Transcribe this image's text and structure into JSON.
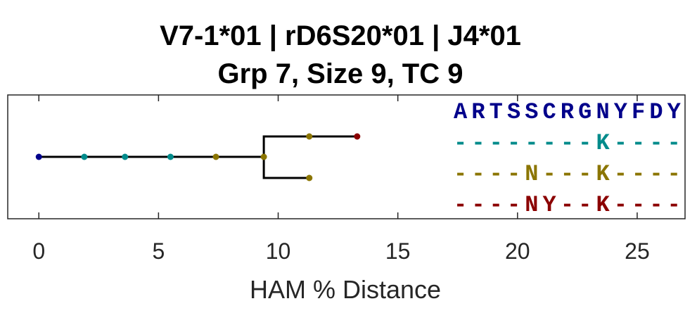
{
  "chart_data": {
    "type": "tree",
    "title": "V7-1*01 | rD6S20*01 | J4*01",
    "subtitle": "Grp 7, Size 9, TC 9",
    "xlabel": "HAM % Distance",
    "xlim": [
      -1.3,
      27
    ],
    "xticks": [
      0,
      5,
      10,
      15,
      20,
      25
    ],
    "xtick_labels": [
      "0",
      "5",
      "10",
      "15",
      "20",
      "25"
    ],
    "grid": false,
    "colors": {
      "germline": "#00008b",
      "teal": "#008b8b",
      "olive": "#8b7500",
      "red": "#8b0000",
      "edge": "#000000"
    },
    "nodes": [
      {
        "id": "root",
        "x": 0.0,
        "lane": 0,
        "color": "germline"
      },
      {
        "id": "n1",
        "x": 1.9,
        "lane": 0,
        "color": "teal"
      },
      {
        "id": "n2",
        "x": 3.6,
        "lane": 0,
        "color": "teal"
      },
      {
        "id": "n3",
        "x": 5.5,
        "lane": 0,
        "color": "teal"
      },
      {
        "id": "n4",
        "x": 7.4,
        "lane": 0,
        "color": "olive"
      },
      {
        "id": "n5",
        "x": 9.4,
        "lane": 0,
        "color": "olive"
      },
      {
        "id": "n6",
        "x": 11.3,
        "lane": 1,
        "color": "olive"
      },
      {
        "id": "n7",
        "x": 13.3,
        "lane": 1,
        "color": "red"
      },
      {
        "id": "n8",
        "x": 11.3,
        "lane": -1,
        "color": "olive"
      }
    ],
    "edges": [
      [
        "root",
        "n1"
      ],
      [
        "n1",
        "n2"
      ],
      [
        "n2",
        "n3"
      ],
      [
        "n3",
        "n4"
      ],
      [
        "n4",
        "n5"
      ],
      [
        "n5",
        "n6"
      ],
      [
        "n6",
        "n7"
      ],
      [
        "n5",
        "n8"
      ]
    ],
    "sequences": [
      {
        "color": "germline",
        "chars": [
          "A",
          "R",
          "T",
          "S",
          "S",
          "C",
          "R",
          "G",
          "N",
          "Y",
          "F",
          "D",
          "Y"
        ]
      },
      {
        "color": "teal",
        "chars": [
          "-",
          "-",
          "-",
          "-",
          "-",
          "-",
          "-",
          "-",
          "K",
          "-",
          "-",
          "-",
          "-"
        ]
      },
      {
        "color": "olive",
        "chars": [
          "-",
          "-",
          "-",
          "-",
          "N",
          "-",
          "-",
          "-",
          "K",
          "-",
          "-",
          "-",
          "-"
        ]
      },
      {
        "color": "red",
        "chars": [
          "-",
          "-",
          "-",
          "-",
          "N",
          "Y",
          "-",
          "-",
          "K",
          "-",
          "-",
          "-",
          "-"
        ]
      }
    ]
  }
}
